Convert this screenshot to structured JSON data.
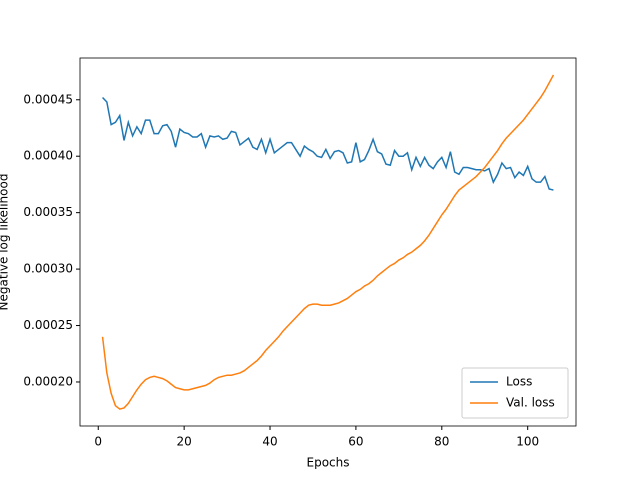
{
  "chart_data": {
    "type": "line",
    "x_label": "Epochs",
    "y_label": "Negative log likelihood",
    "x": [
      1,
      2,
      3,
      4,
      5,
      6,
      7,
      8,
      9,
      10,
      11,
      12,
      13,
      14,
      15,
      16,
      17,
      18,
      19,
      20,
      21,
      22,
      23,
      24,
      25,
      26,
      27,
      28,
      29,
      30,
      31,
      32,
      33,
      34,
      35,
      36,
      37,
      38,
      39,
      40,
      41,
      42,
      43,
      44,
      45,
      46,
      47,
      48,
      49,
      50,
      51,
      52,
      53,
      54,
      55,
      56,
      57,
      58,
      59,
      60,
      61,
      62,
      63,
      64,
      65,
      66,
      67,
      68,
      69,
      70,
      71,
      72,
      73,
      74,
      75,
      76,
      77,
      78,
      79,
      80,
      81,
      82,
      83,
      84,
      85,
      86,
      87,
      88,
      89,
      90,
      91,
      92,
      93,
      94,
      95,
      96,
      97,
      98,
      99,
      100,
      101,
      102,
      103,
      104,
      105,
      106
    ],
    "series": [
      {
        "name": "Loss",
        "color": "#1f77b4",
        "values": [
          0.000452,
          0.000448,
          0.000428,
          0.00043,
          0.000436,
          0.000414,
          0.00043,
          0.000418,
          0.000426,
          0.00042,
          0.000432,
          0.000432,
          0.00042,
          0.00042,
          0.000427,
          0.000428,
          0.000422,
          0.000408,
          0.000424,
          0.000421,
          0.00042,
          0.000417,
          0.000417,
          0.00042,
          0.000408,
          0.000418,
          0.000417,
          0.000418,
          0.000415,
          0.000416,
          0.000422,
          0.000421,
          0.00041,
          0.000413,
          0.000416,
          0.000408,
          0.000406,
          0.000415,
          0.000403,
          0.000415,
          0.000403,
          0.000406,
          0.000409,
          0.000412,
          0.000412,
          0.000406,
          0.0004,
          0.000409,
          0.000406,
          0.000404,
          0.0004,
          0.000399,
          0.000406,
          0.000398,
          0.000404,
          0.000405,
          0.000403,
          0.000394,
          0.000395,
          0.000412,
          0.000395,
          0.000397,
          0.000405,
          0.000415,
          0.000404,
          0.000402,
          0.000393,
          0.000392,
          0.000405,
          0.0004,
          0.0004,
          0.000403,
          0.000388,
          0.000399,
          0.000391,
          0.000399,
          0.000392,
          0.000389,
          0.000395,
          0.000399,
          0.00039,
          0.000404,
          0.000386,
          0.000384,
          0.00039,
          0.00039,
          0.000389,
          0.000388,
          0.000388,
          0.000387,
          0.000389,
          0.000377,
          0.000384,
          0.000394,
          0.000389,
          0.00039,
          0.000381,
          0.000386,
          0.000383,
          0.000391,
          0.00038,
          0.000377,
          0.000377,
          0.000382,
          0.000371,
          0.00037
        ]
      },
      {
        "name": "Val. loss",
        "color": "#ff7f0e",
        "values": [
          0.00024,
          0.000208,
          0.00019,
          0.000179,
          0.000176,
          0.000177,
          0.000181,
          0.000187,
          0.000193,
          0.000198,
          0.000202,
          0.000204,
          0.000205,
          0.000204,
          0.000203,
          0.000201,
          0.000198,
          0.000195,
          0.000194,
          0.000193,
          0.000193,
          0.000194,
          0.000195,
          0.000196,
          0.000197,
          0.000199,
          0.000202,
          0.000204,
          0.000205,
          0.000206,
          0.000206,
          0.000207,
          0.000208,
          0.00021,
          0.000213,
          0.000216,
          0.000219,
          0.000223,
          0.000228,
          0.000232,
          0.000236,
          0.00024,
          0.000245,
          0.000249,
          0.000253,
          0.000257,
          0.000261,
          0.000265,
          0.000268,
          0.000269,
          0.000269,
          0.000268,
          0.000268,
          0.000268,
          0.000269,
          0.00027,
          0.000272,
          0.000274,
          0.000277,
          0.00028,
          0.000282,
          0.000285,
          0.000287,
          0.00029,
          0.000294,
          0.000297,
          0.0003,
          0.000303,
          0.000305,
          0.000308,
          0.00031,
          0.000313,
          0.000315,
          0.000318,
          0.000321,
          0.000325,
          0.00033,
          0.000336,
          0.000342,
          0.000348,
          0.000353,
          0.000359,
          0.000365,
          0.00037,
          0.000373,
          0.000376,
          0.000379,
          0.000382,
          0.000386,
          0.00039,
          0.000395,
          0.0004,
          0.000405,
          0.000411,
          0.000416,
          0.00042,
          0.000424,
          0.000428,
          0.000432,
          0.000437,
          0.000442,
          0.000447,
          0.000452,
          0.000458,
          0.000465,
          0.000472
        ]
      }
    ],
    "xlim": [
      -4.25,
      111.25
    ],
    "ylim": [
      0.000161,
      0.000487
    ],
    "xticks": [
      0,
      20,
      40,
      60,
      80,
      100
    ],
    "yticks": [
      {
        "value": 0.0002,
        "label": "0.00020"
      },
      {
        "value": 0.00025,
        "label": "0.00025"
      },
      {
        "value": 0.0003,
        "label": "0.00030"
      },
      {
        "value": 0.00035,
        "label": "0.00035"
      },
      {
        "value": 0.0004,
        "label": "0.00040"
      },
      {
        "value": 0.00045,
        "label": "0.00045"
      }
    ],
    "grid": false,
    "legend": "lower right"
  }
}
